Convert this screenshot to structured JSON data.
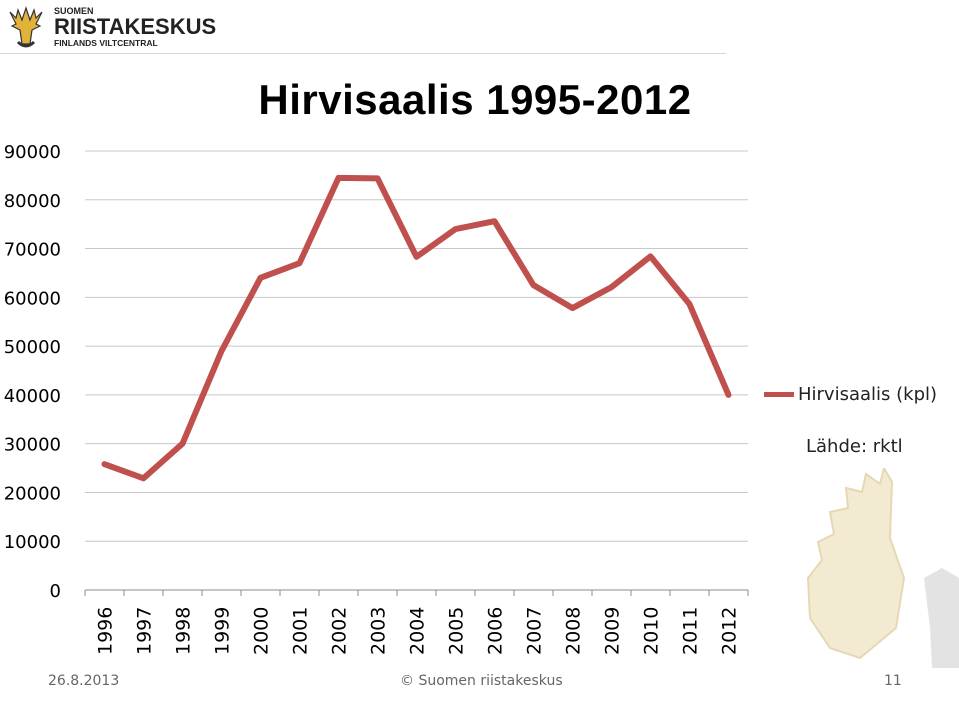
{
  "header": {
    "logo_line1": "SUOMEN",
    "logo_line2": "RIISTAKESKUS",
    "logo_line3": "FINLANDS VILTCENTRAL"
  },
  "chart_data": {
    "type": "line",
    "title": "Hirvisaalis 1995-2012",
    "x": [
      "1996",
      "1997",
      "1998",
      "1999",
      "2000",
      "2001",
      "2002",
      "2003",
      "2004",
      "2005",
      "2006",
      "2007",
      "2008",
      "2009",
      "2010",
      "2011",
      "2012"
    ],
    "series": [
      {
        "name": "Hirvisaalis (kpl)",
        "color": "#c0504d",
        "values": [
          25800,
          22900,
          30000,
          49000,
          64000,
          67000,
          84500,
          84400,
          68300,
          74000,
          75600,
          62500,
          57800,
          62100,
          68400,
          58600,
          40000
        ]
      }
    ],
    "ylim": [
      0,
      90000
    ],
    "yticks": [
      "0",
      "10000",
      "20000",
      "30000",
      "40000",
      "50000",
      "60000",
      "70000",
      "80000",
      "90000"
    ],
    "grid": true,
    "legend_position": "right",
    "annotation": "Lähde: rktl"
  },
  "footer": {
    "date": "26.8.2013",
    "copyright": "© Suomen riistakeskus",
    "page": "11"
  }
}
